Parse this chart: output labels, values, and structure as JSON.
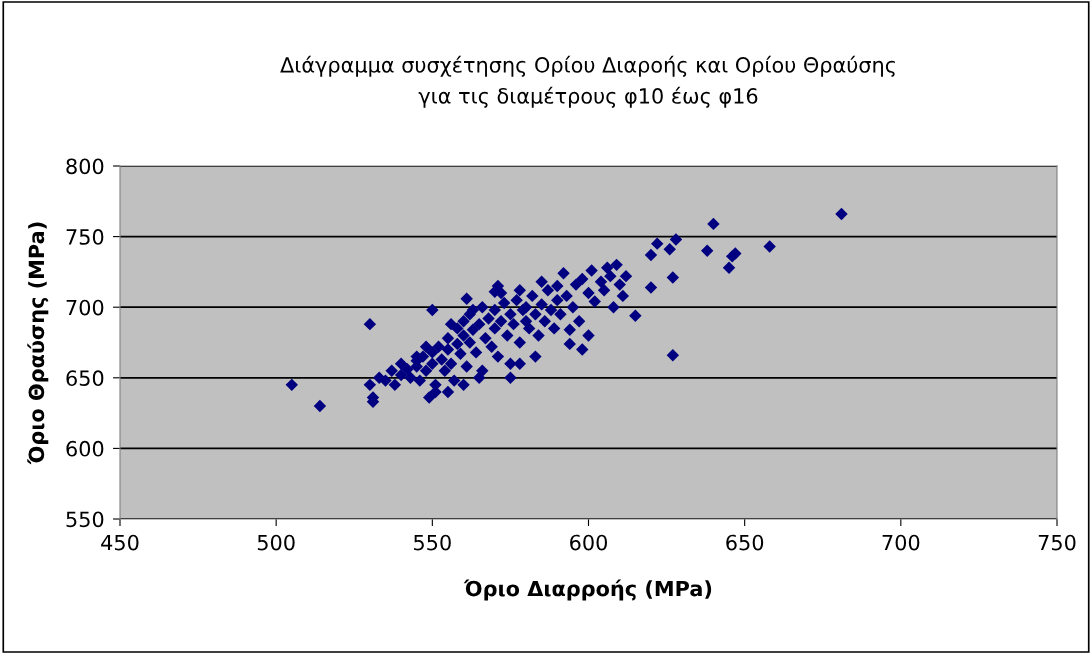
{
  "chart_data": {
    "type": "scatter",
    "title": "Διάγραμμα συσχέτησης Ορίου Διαροής και Ορίου Θραύσης\nγια τις διαμέτρους φ10 έως φ16",
    "xlabel": "Όριο Διαρροής (MPa)",
    "ylabel": "Όριο Θραύσης (MPa)",
    "xlim": [
      450,
      750
    ],
    "xticks": [
      450,
      500,
      550,
      600,
      650,
      700,
      750
    ],
    "ylim": [
      550,
      800
    ],
    "yticks": [
      550,
      600,
      650,
      700,
      750,
      800
    ],
    "grid": "y",
    "marker": "diamond",
    "legend": false,
    "series": [
      {
        "color": "#000080",
        "x": [
          505,
          514,
          530,
          531,
          531,
          550,
          561,
          571,
          570,
          640,
          681,
          622,
          628,
          620,
          626,
          638,
          658,
          645,
          647,
          646,
          620,
          627,
          627,
          615,
          600,
          598,
          594,
          594,
          530,
          533,
          535,
          537,
          538,
          540,
          540,
          542,
          543,
          545,
          545,
          546,
          547,
          548,
          549,
          550,
          550,
          551,
          552,
          553,
          554,
          555,
          555,
          556,
          557,
          558,
          558,
          559,
          560,
          560,
          561,
          562,
          562,
          563,
          564,
          565,
          565,
          566,
          567,
          568,
          569,
          570,
          570,
          571,
          572,
          573,
          574,
          575,
          575,
          576,
          577,
          578,
          579,
          580,
          580,
          581,
          582,
          583,
          584,
          585,
          586,
          587,
          588,
          589,
          590,
          590,
          591,
          592,
          593,
          595,
          596,
          597,
          598,
          600,
          601,
          602,
          604,
          605,
          606,
          607,
          608,
          609,
          610,
          611,
          612,
          566,
          560,
          555,
          551,
          575,
          578,
          583,
          545,
          548,
          556,
          563,
          572,
          578,
          585
        ],
        "values": [
          645,
          630,
          688,
          633,
          636,
          698,
          706,
          715,
          711,
          759,
          766,
          745,
          748,
          737,
          741,
          740,
          743,
          728,
          738,
          736,
          714,
          721,
          666,
          694,
          680,
          670,
          684,
          674,
          645,
          650,
          648,
          655,
          645,
          652,
          660,
          656,
          650,
          658,
          662,
          648,
          665,
          655,
          636,
          660,
          668,
          645,
          672,
          663,
          655,
          670,
          678,
          660,
          648,
          674,
          685,
          667,
          680,
          690,
          658,
          675,
          695,
          684,
          668,
          688,
          650,
          700,
          678,
          692,
          672,
          685,
          698,
          665,
          690,
          703,
          680,
          695,
          660,
          688,
          705,
          675,
          698,
          690,
          700,
          685,
          708,
          695,
          680,
          702,
          690,
          712,
          698,
          685,
          705,
          715,
          695,
          724,
          708,
          700,
          716,
          690,
          720,
          710,
          726,
          704,
          718,
          712,
          728,
          722,
          700,
          730,
          716,
          708,
          722,
          655,
          645,
          640,
          640,
          650,
          660,
          665,
          665,
          672,
          688,
          698,
          710,
          712,
          718
        ]
      }
    ]
  }
}
